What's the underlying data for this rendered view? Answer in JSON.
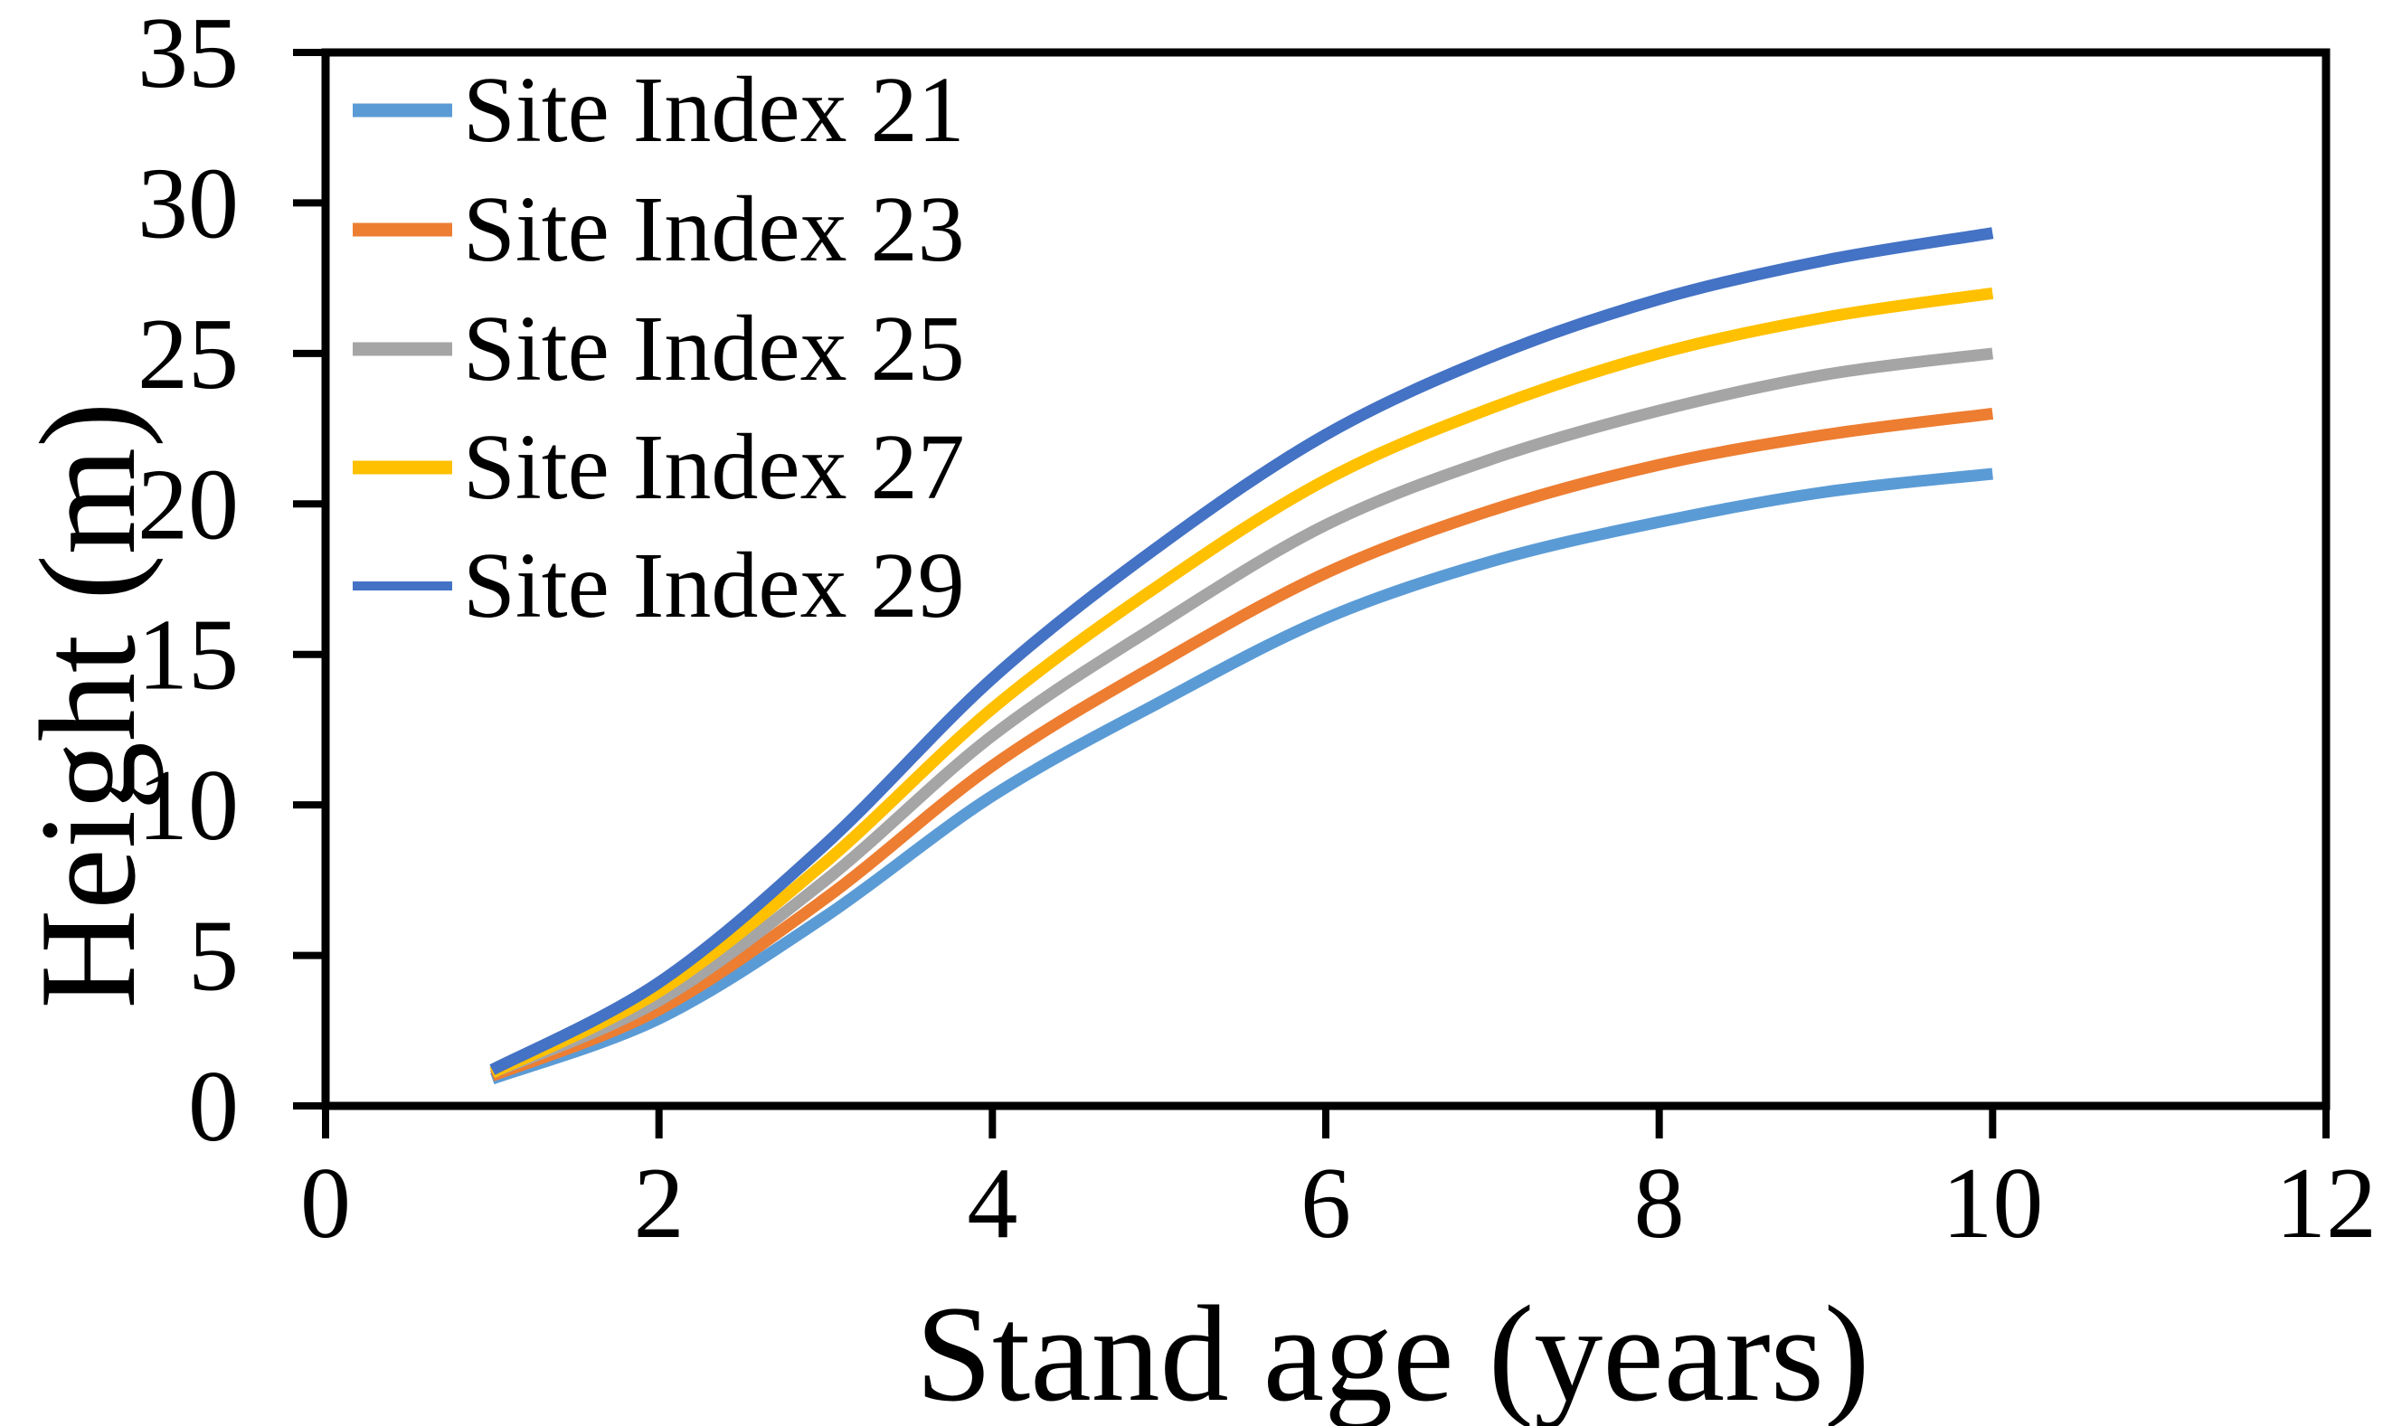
{
  "figure": {
    "background": "#ffffff",
    "frame_color": "#000000"
  },
  "chart_data": {
    "type": "line",
    "title": "",
    "xlabel": "Stand age (years)",
    "ylabel": "Height (m)",
    "x": [
      1,
      2,
      3,
      4,
      5,
      6,
      7,
      8,
      9,
      10
    ],
    "series": [
      {
        "name": "Site Index 21",
        "color": "#5B9BD5",
        "values": [
          0.9,
          2.9,
          6.3,
          10.3,
          13.4,
          16.2,
          18.1,
          19.4,
          20.4,
          21.0
        ]
      },
      {
        "name": "Site Index 23",
        "color": "#ED7D31",
        "values": [
          1.0,
          3.2,
          6.9,
          11.3,
          14.7,
          17.7,
          19.8,
          21.3,
          22.3,
          23.0
        ]
      },
      {
        "name": "Site Index 25",
        "color": "#A5A5A5",
        "values": [
          1.1,
          3.5,
          7.5,
          12.3,
          16.0,
          19.3,
          21.5,
          23.1,
          24.3,
          25.0
        ]
      },
      {
        "name": "Site Index 27",
        "color": "#FFC000",
        "values": [
          1.1,
          3.8,
          8.1,
          13.2,
          17.3,
          20.8,
          23.2,
          25.0,
          26.2,
          27.0
        ]
      },
      {
        "name": "Site Index 29",
        "color": "#4472C4",
        "values": [
          1.2,
          4.1,
          8.7,
          14.2,
          18.6,
          22.3,
          24.9,
          26.8,
          28.1,
          29.0
        ]
      }
    ],
    "xlim": [
      0,
      12
    ],
    "ylim": [
      0,
      35
    ],
    "xticks": [
      0,
      2,
      4,
      6,
      8,
      10,
      12
    ],
    "yticks": [
      0,
      5,
      10,
      15,
      20,
      25,
      30,
      35
    ],
    "grid": false,
    "legend_position": "top-left"
  }
}
